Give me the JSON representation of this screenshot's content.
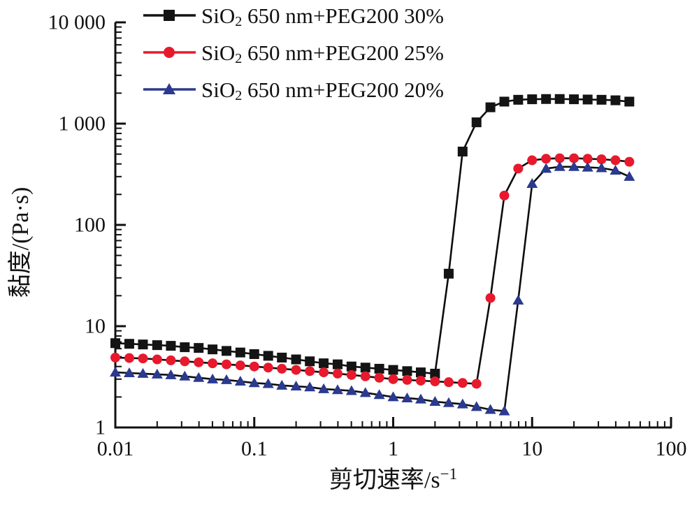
{
  "colors": {
    "axis": "#111111",
    "line": "#0d0d0d",
    "series_black": "#141414",
    "series_red": "#e8192d",
    "series_blue": "#2b3a8f",
    "background": "#ffffff"
  },
  "chart_data": {
    "type": "line",
    "title": "",
    "x_scale": "log",
    "y_scale": "log",
    "xlim": [
      0.01,
      100
    ],
    "ylim": [
      1,
      10000
    ],
    "grid": false,
    "legend_position": "top-left-inside",
    "xlabel": {
      "pre": "剪切速率/s",
      "sup": "−1"
    },
    "ylabel": "黏度/(Pa·s)",
    "x_ticks": [
      {
        "value": 0.01,
        "label": "0.01"
      },
      {
        "value": 0.1,
        "label": "0.1"
      },
      {
        "value": 1,
        "label": "1"
      },
      {
        "value": 10,
        "label": "10"
      },
      {
        "value": 100,
        "label": "100"
      }
    ],
    "y_ticks": [
      {
        "value": 1,
        "label": "1"
      },
      {
        "value": 10,
        "label": "10"
      },
      {
        "value": 100,
        "label": "100"
      },
      {
        "value": 1000,
        "label": "1 000"
      },
      {
        "value": 10000,
        "label": "10 000"
      }
    ],
    "x": [
      0.01,
      0.0126,
      0.0158,
      0.02,
      0.0251,
      0.0316,
      0.0398,
      0.0501,
      0.0631,
      0.0794,
      0.1,
      0.126,
      0.158,
      0.2,
      0.251,
      0.316,
      0.398,
      0.501,
      0.631,
      0.794,
      1,
      1.26,
      1.58,
      2,
      2.51,
      3.16,
      3.98,
      5.01,
      6.31,
      7.94,
      10,
      12.6,
      15.8,
      20,
      25.1,
      31.6,
      39.8,
      50.1
    ],
    "series": [
      {
        "id": "sio2-650nm-peg200-30",
        "name_pre": "SiO",
        "name_sub": "2",
        "name_rest": " 650 nm+PEG200 30%",
        "marker": "square",
        "color": "#141414",
        "line_color": "#0d0d0d",
        "values": [
          6.8,
          6.7,
          6.6,
          6.5,
          6.4,
          6.2,
          6.1,
          5.9,
          5.7,
          5.5,
          5.3,
          5.1,
          4.9,
          4.7,
          4.5,
          4.3,
          4.2,
          4.0,
          3.9,
          3.8,
          3.7,
          3.6,
          3.5,
          3.4,
          33,
          530,
          1030,
          1450,
          1650,
          1720,
          1740,
          1750,
          1750,
          1740,
          1730,
          1720,
          1700,
          1650
        ]
      },
      {
        "id": "sio2-650nm-peg200-25",
        "name_pre": "SiO",
        "name_sub": "2",
        "name_rest": " 650 nm+PEG200 25%",
        "marker": "circle",
        "color": "#e8192d",
        "line_color": "#0d0d0d",
        "values": [
          4.9,
          4.85,
          4.8,
          4.7,
          4.6,
          4.5,
          4.4,
          4.3,
          4.2,
          4.1,
          4.0,
          3.9,
          3.8,
          3.7,
          3.6,
          3.5,
          3.4,
          3.3,
          3.2,
          3.1,
          3.0,
          2.95,
          2.9,
          2.85,
          2.8,
          2.75,
          2.7,
          19,
          195,
          360,
          435,
          450,
          455,
          455,
          450,
          445,
          435,
          420
        ]
      },
      {
        "id": "sio2-650nm-peg200-20",
        "name_pre": "SiO",
        "name_sub": "2",
        "name_rest": " 650 nm+PEG200 20%",
        "marker": "triangle",
        "color": "#2b3a8f",
        "line_color": "#0d0d0d",
        "values": [
          3.5,
          3.45,
          3.4,
          3.35,
          3.3,
          3.2,
          3.1,
          3.0,
          2.95,
          2.85,
          2.75,
          2.7,
          2.6,
          2.55,
          2.5,
          2.4,
          2.35,
          2.3,
          2.2,
          2.1,
          2.0,
          1.95,
          1.9,
          1.8,
          1.75,
          1.7,
          1.6,
          1.5,
          1.45,
          18,
          255,
          360,
          375,
          375,
          370,
          365,
          345,
          300
        ]
      }
    ]
  }
}
